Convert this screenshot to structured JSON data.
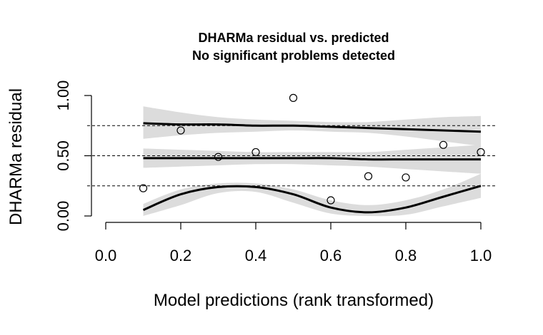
{
  "chart_data": {
    "type": "scatter",
    "title": "DHARMa residual vs. predicted",
    "subtitle": "No significant problems detected",
    "xlabel": "Model predictions (rank transformed)",
    "ylabel": "DHARMa residual",
    "xlim": [
      0.0,
      1.0
    ],
    "ylim": [
      0.0,
      1.0
    ],
    "x_ticks": [
      0.0,
      0.2,
      0.4,
      0.6,
      0.8,
      1.0
    ],
    "x_tick_labels": [
      "0.0",
      "0.2",
      "0.4",
      "0.6",
      "0.8",
      "1.0"
    ],
    "y_ticks": [
      0.0,
      0.5,
      1.0
    ],
    "y_tick_labels": [
      "0.00",
      "0.50",
      "1.00"
    ],
    "reference_lines": [
      0.25,
      0.5,
      0.75
    ],
    "points": {
      "x": [
        0.1,
        0.2,
        0.3,
        0.4,
        0.5,
        0.6,
        0.7,
        0.8,
        0.9,
        1.0
      ],
      "y": [
        0.23,
        0.71,
        0.49,
        0.53,
        0.98,
        0.13,
        0.33,
        0.32,
        0.59,
        0.53
      ]
    },
    "quantile_curves": [
      {
        "x": [
          0.1,
          0.2,
          0.3,
          0.4,
          0.5,
          0.6,
          0.7,
          0.8,
          0.9,
          1.0
        ],
        "y": [
          0.05,
          0.18,
          0.24,
          0.24,
          0.18,
          0.07,
          0.03,
          0.07,
          0.16,
          0.25
        ],
        "band_low": [
          0.0,
          0.09,
          0.19,
          0.2,
          0.11,
          0.02,
          0.0,
          0.01,
          0.08,
          0.15
        ],
        "band_high": [
          0.1,
          0.22,
          0.27,
          0.27,
          0.22,
          0.13,
          0.09,
          0.13,
          0.22,
          0.35
        ]
      },
      {
        "x": [
          0.1,
          0.2,
          0.3,
          0.4,
          0.5,
          0.6,
          0.7,
          0.8,
          0.9,
          1.0
        ],
        "y": [
          0.48,
          0.48,
          0.48,
          0.48,
          0.48,
          0.48,
          0.47,
          0.47,
          0.47,
          0.47
        ],
        "band_low": [
          0.4,
          0.41,
          0.42,
          0.43,
          0.43,
          0.42,
          0.41,
          0.39,
          0.37,
          0.35
        ],
        "band_high": [
          0.56,
          0.55,
          0.54,
          0.53,
          0.53,
          0.53,
          0.53,
          0.55,
          0.57,
          0.59
        ]
      },
      {
        "x": [
          0.1,
          0.2,
          0.3,
          0.4,
          0.5,
          0.6,
          0.7,
          0.8,
          0.9,
          1.0
        ],
        "y": [
          0.77,
          0.76,
          0.76,
          0.75,
          0.75,
          0.74,
          0.73,
          0.72,
          0.71,
          0.7
        ],
        "band_low": [
          0.64,
          0.67,
          0.69,
          0.7,
          0.71,
          0.7,
          0.69,
          0.66,
          0.62,
          0.58
        ],
        "band_high": [
          0.91,
          0.86,
          0.82,
          0.8,
          0.79,
          0.78,
          0.78,
          0.8,
          0.82,
          0.83
        ]
      }
    ]
  }
}
